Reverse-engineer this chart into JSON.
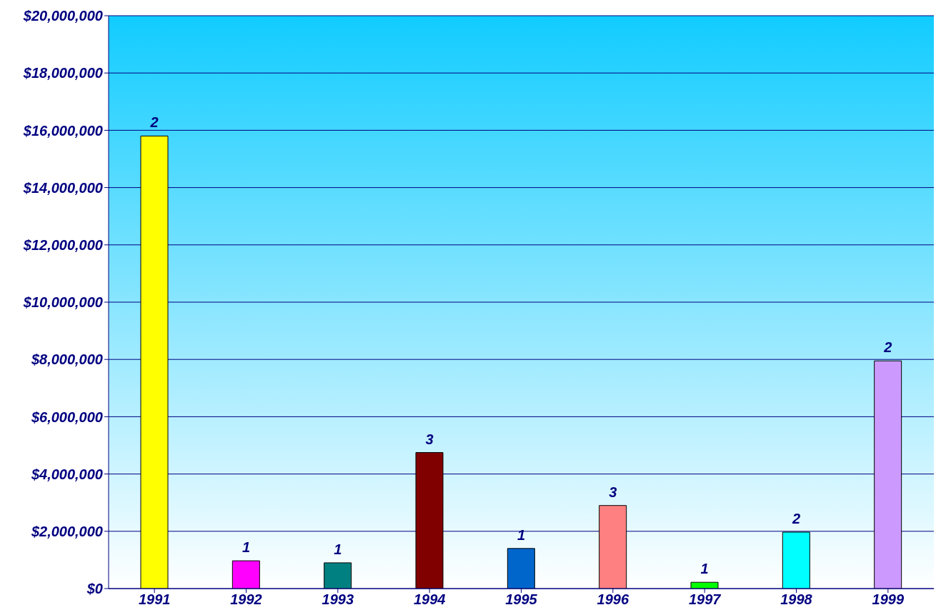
{
  "chart_data": {
    "type": "bar",
    "categories": [
      "1991",
      "1992",
      "1993",
      "1994",
      "1995",
      "1996",
      "1997",
      "1998",
      "1999"
    ],
    "values": [
      15800000,
      970000,
      900000,
      4750000,
      1400000,
      2900000,
      220000,
      1970000,
      7950000
    ],
    "colors": [
      "#ffff00",
      "#ff00ff",
      "#008080",
      "#800000",
      "#0066cc",
      "#ff8080",
      "#00ff00",
      "#00ffff",
      "#cc99ff"
    ],
    "annotations": [
      {
        "text": "2",
        "x": "1991",
        "y": 15800000
      },
      {
        "text": "1",
        "x": "1992",
        "y": 970000
      },
      {
        "text": "1",
        "x": "1993",
        "y": 900000
      },
      {
        "text": "3",
        "x": "1994",
        "y": 4750000
      },
      {
        "text": "1",
        "x": "1995",
        "y": 1400000
      },
      {
        "text": "3",
        "x": "1996",
        "y": 2900000
      },
      {
        "text": "1",
        "x": "1997",
        "y": 220000
      },
      {
        "text": "2",
        "x": "1998",
        "y": 1970000
      },
      {
        "text": "2",
        "x": "1999",
        "y": 7950000
      }
    ],
    "ylim": [
      0,
      20000000
    ],
    "yticks": [
      {
        "value": 0,
        "label": "$0"
      },
      {
        "value": 2000000,
        "label": "$2,000,000"
      },
      {
        "value": 4000000,
        "label": "$4,000,000"
      },
      {
        "value": 6000000,
        "label": "$6,000,000"
      },
      {
        "value": 8000000,
        "label": "$8,000,000"
      },
      {
        "value": 10000000,
        "label": "$10,000,000"
      },
      {
        "value": 12000000,
        "label": "$12,000,000"
      },
      {
        "value": 14000000,
        "label": "$14,000,000"
      },
      {
        "value": 16000000,
        "label": "$16,000,000"
      },
      {
        "value": 18000000,
        "label": "$18,000,000"
      },
      {
        "value": 20000000,
        "label": "$20,000,000"
      }
    ],
    "grid": "y"
  }
}
